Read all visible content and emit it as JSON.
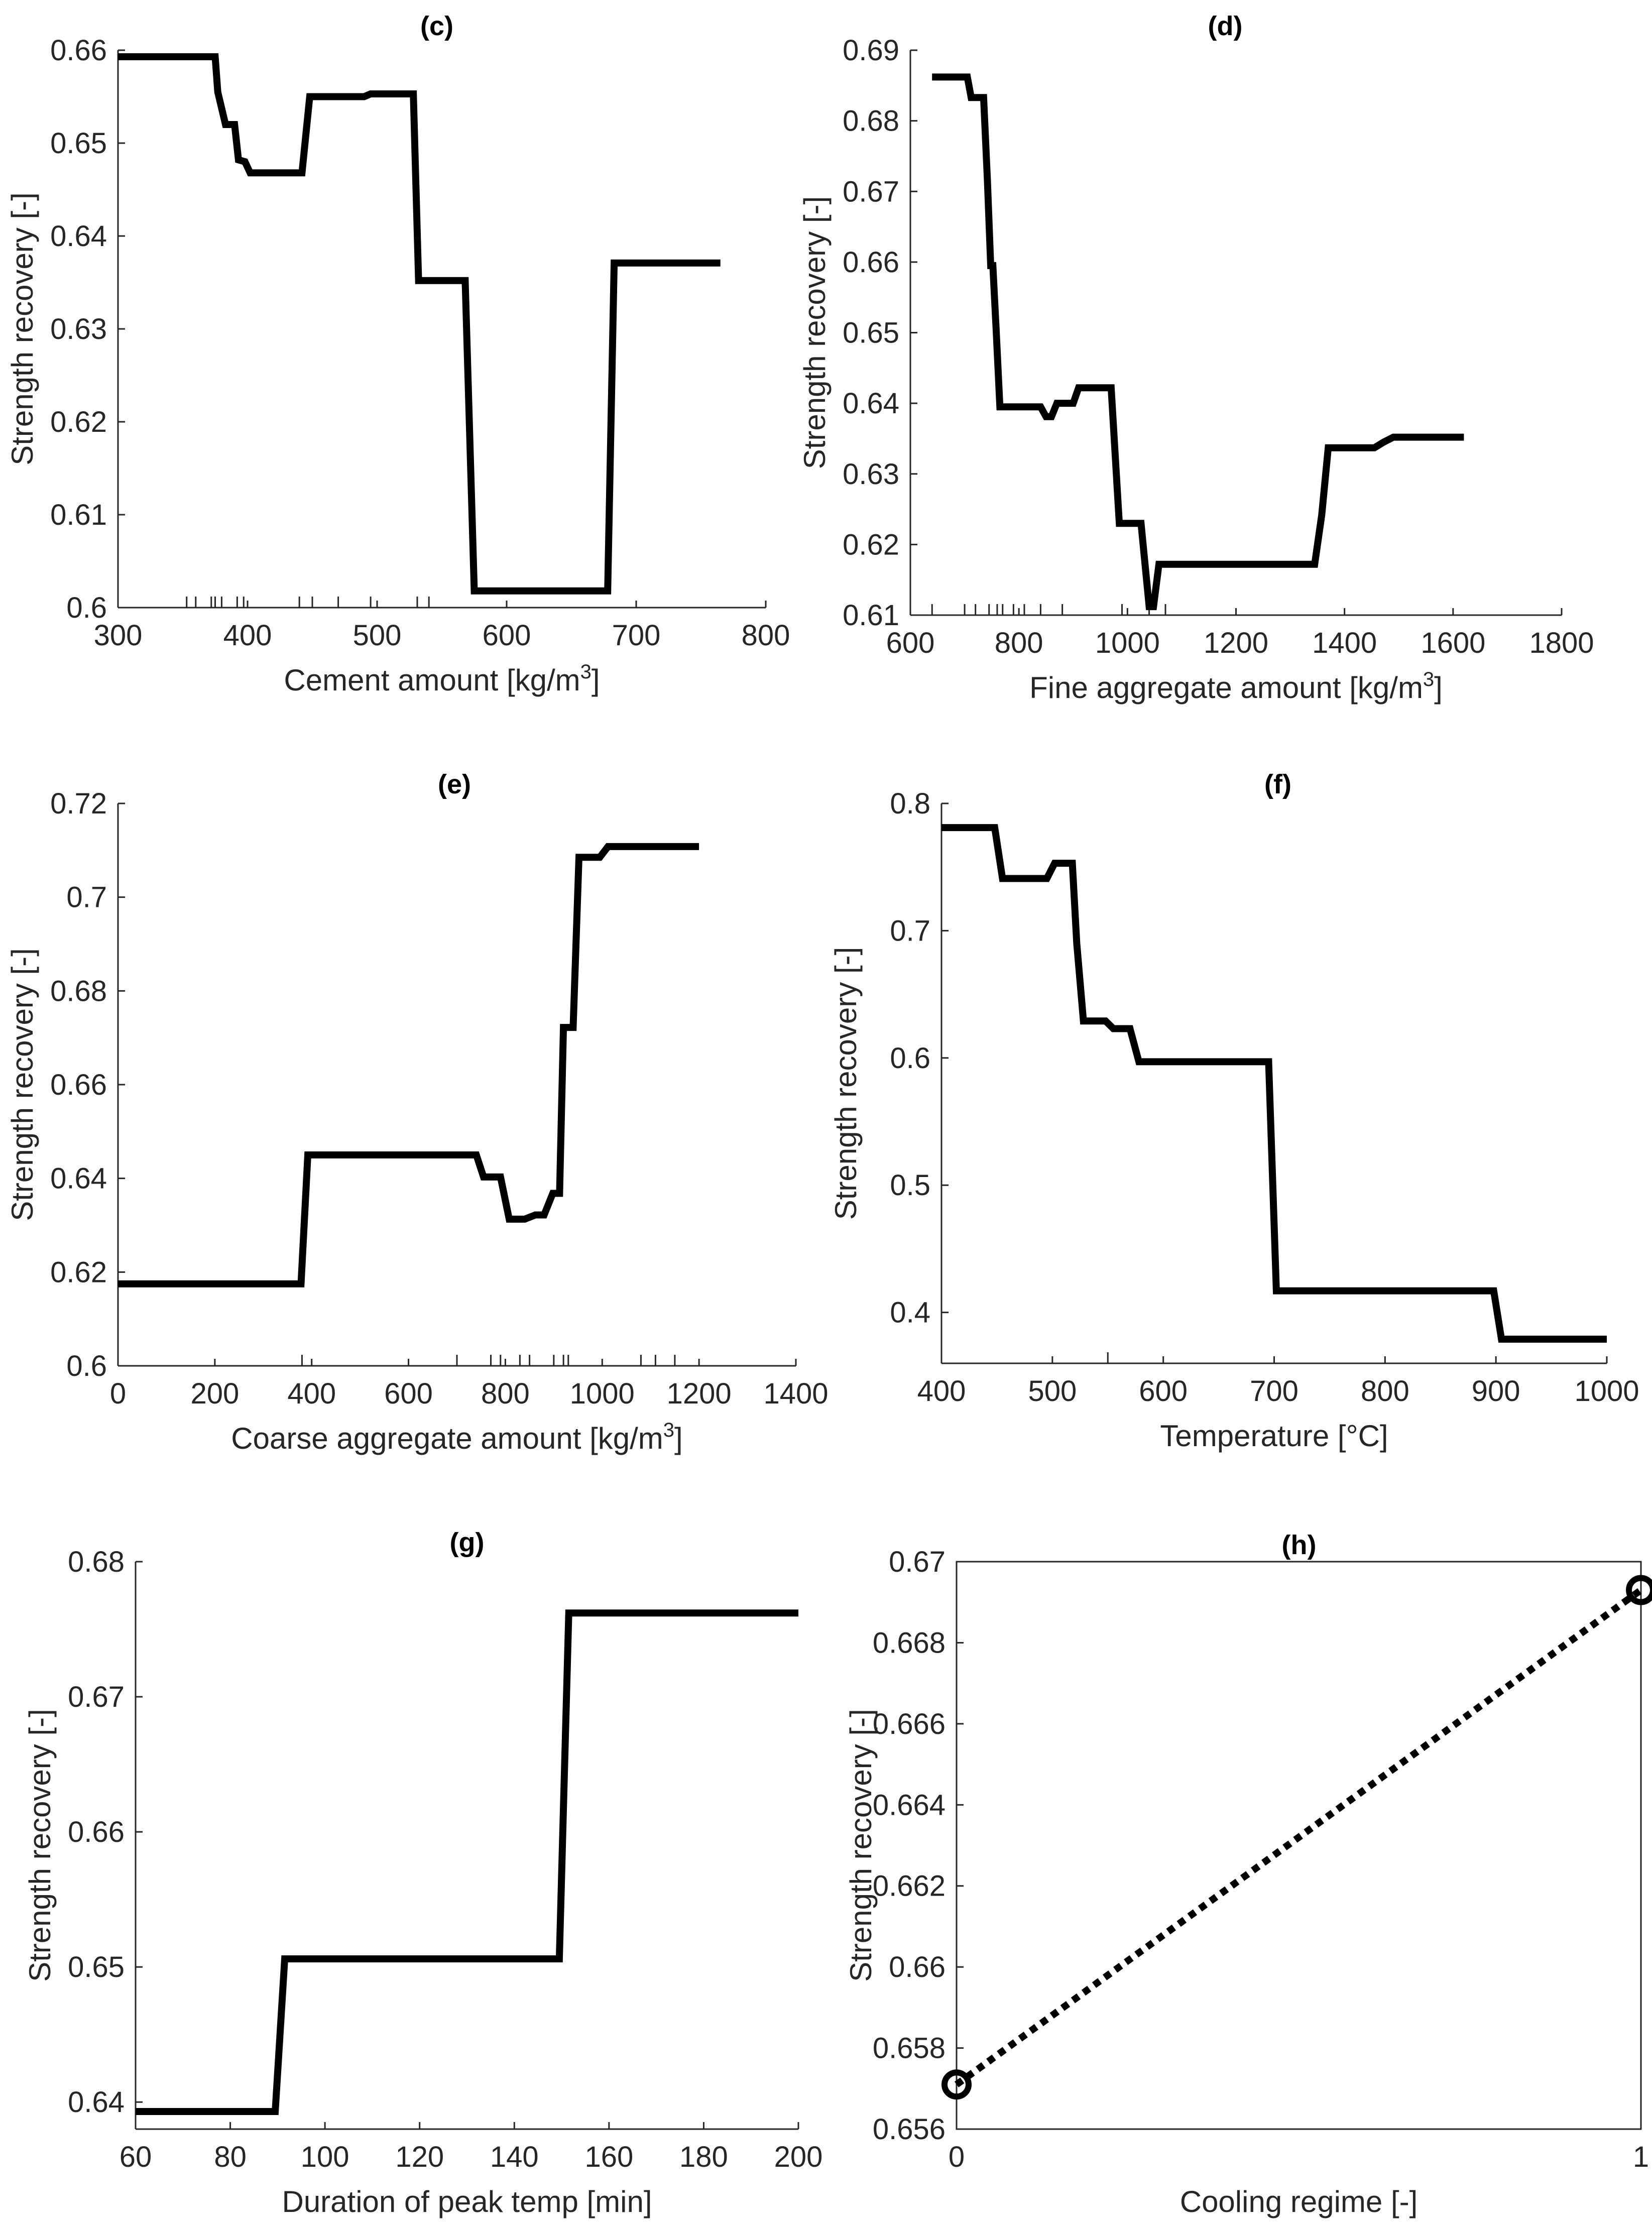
{
  "chart_data": [
    {
      "id": "c",
      "type": "line",
      "title": "(c)",
      "xlabel": "Cement amount [kg/m",
      "xlabel_sup": "3",
      "xlabel_end": "]",
      "ylabel": "Strength recovery [-]",
      "xlim": [
        300,
        800
      ],
      "ylim": [
        0.6,
        0.66
      ],
      "xticks": [
        300,
        400,
        500,
        600,
        700,
        800
      ],
      "xtick_labels": [
        "300",
        "400",
        "500",
        "600",
        "700",
        "800"
      ],
      "yticks": [
        0.6,
        0.61,
        0.62,
        0.63,
        0.64,
        0.65,
        0.66
      ],
      "ytick_labels": [
        "0.6",
        "0.61",
        "0.62",
        "0.63",
        "0.64",
        "0.65",
        "0.66"
      ],
      "rug": [
        353,
        360,
        372,
        375,
        380,
        392,
        397,
        440,
        450,
        470,
        495,
        531,
        540
      ],
      "x": [
        300,
        375,
        377,
        383,
        390,
        393,
        398,
        402,
        410,
        435,
        442,
        448,
        490,
        495,
        500,
        528,
        532,
        568,
        575,
        678,
        683,
        765
      ],
      "y": [
        0.6593,
        0.6593,
        0.6555,
        0.652,
        0.652,
        0.6482,
        0.648,
        0.6468,
        0.6468,
        0.6468,
        0.6468,
        0.655,
        0.655,
        0.6553,
        0.6553,
        0.6553,
        0.6352,
        0.6352,
        0.6018,
        0.6018,
        0.6371,
        0.6371
      ]
    },
    {
      "id": "d",
      "type": "line",
      "title": "(d)",
      "xlabel": "Fine aggregate amount [kg/m",
      "xlabel_sup": "3",
      "xlabel_end": "]",
      "ylabel": "Strength recovery [-]",
      "xlim": [
        600,
        1800
      ],
      "ylim": [
        0.61,
        0.69
      ],
      "xticks": [
        600,
        800,
        1000,
        1200,
        1400,
        1600,
        1800
      ],
      "xtick_labels": [
        "600",
        "800",
        "1000",
        "1200",
        "1400",
        "1600",
        "1800"
      ],
      "yticks": [
        0.61,
        0.62,
        0.63,
        0.64,
        0.65,
        0.66,
        0.67,
        0.68,
        0.69
      ],
      "ytick_labels": [
        "0.61",
        "0.62",
        "0.63",
        "0.64",
        "0.65",
        "0.66",
        "0.67",
        "0.68",
        "0.69"
      ],
      "rug": [
        640,
        700,
        720,
        745,
        760,
        770,
        790,
        810,
        840,
        880,
        990,
        1040,
        1070
      ],
      "x": [
        640,
        705,
        712,
        735,
        742,
        748,
        752,
        758,
        765,
        840,
        850,
        860,
        870,
        900,
        910,
        960,
        970,
        985,
        1025,
        1040,
        1048,
        1058,
        1345,
        1358,
        1370,
        1455,
        1472,
        1490,
        1620
      ],
      "y": [
        0.6862,
        0.6862,
        0.6833,
        0.6833,
        0.6715,
        0.6595,
        0.6595,
        0.6505,
        0.6395,
        0.6395,
        0.6381,
        0.6381,
        0.64,
        0.64,
        0.6422,
        0.6422,
        0.6422,
        0.623,
        0.623,
        0.6112,
        0.6112,
        0.6172,
        0.6172,
        0.6242,
        0.6337,
        0.6337,
        0.6345,
        0.6352,
        0.6352
      ]
    },
    {
      "id": "e",
      "type": "line",
      "title": "(e)",
      "xlabel": "Coarse aggregate amount [kg/m",
      "xlabel_sup": "3",
      "xlabel_end": "]",
      "ylabel": "Strength recovery [-]",
      "xlim": [
        0,
        1400
      ],
      "ylim": [
        0.6,
        0.72
      ],
      "xticks": [
        0,
        200,
        400,
        600,
        800,
        1000,
        1200,
        1400
      ],
      "xtick_labels": [
        "0",
        "200",
        "400",
        "600",
        "800",
        "1000",
        "1200",
        "1400"
      ],
      "yticks": [
        0.6,
        0.62,
        0.64,
        0.66,
        0.68,
        0.7,
        0.72
      ],
      "ytick_labels": [
        "0.6",
        "0.62",
        "0.64",
        "0.66",
        "0.68",
        "0.7",
        "0.72"
      ],
      "rug": [
        0,
        380,
        700,
        770,
        790,
        830,
        850,
        900,
        920,
        930,
        1080,
        1110,
        1150
      ],
      "x": [
        0,
        378,
        392,
        740,
        755,
        790,
        808,
        840,
        862,
        880,
        898,
        912,
        920,
        940,
        952,
        995,
        1012,
        1200
      ],
      "y": [
        0.6175,
        0.6175,
        0.645,
        0.645,
        0.6403,
        0.6403,
        0.6313,
        0.6313,
        0.6322,
        0.6322,
        0.6368,
        0.6368,
        0.6722,
        0.6722,
        0.7085,
        0.7085,
        0.7108,
        0.7108
      ]
    },
    {
      "id": "f",
      "type": "line",
      "title": "(f)",
      "xlabel": "Temperature [°C]",
      "xlabel_sup": "",
      "xlabel_end": "",
      "ylabel": "Strength recovery [-]",
      "xlim": [
        400,
        1000
      ],
      "ylim": [
        0.36,
        0.8
      ],
      "xticks": [
        400,
        500,
        600,
        700,
        800,
        900,
        1000
      ],
      "xtick_labels": [
        "400",
        "500",
        "600",
        "700",
        "800",
        "900",
        "1000"
      ],
      "yticks": [
        0.4,
        0.5,
        0.6,
        0.7,
        0.8
      ],
      "ytick_labels": [
        "0.4",
        "0.5",
        "0.6",
        "0.7",
        "0.8"
      ],
      "rug": [
        550
      ],
      "x": [
        400,
        448,
        455,
        495,
        502,
        518,
        522,
        528,
        548,
        555,
        570,
        578,
        695,
        702,
        898,
        905,
        1000
      ],
      "y": [
        0.781,
        0.781,
        0.741,
        0.741,
        0.753,
        0.753,
        0.69,
        0.629,
        0.629,
        0.623,
        0.623,
        0.597,
        0.597,
        0.417,
        0.417,
        0.379,
        0.379
      ]
    },
    {
      "id": "g",
      "type": "line",
      "title": "(g)",
      "xlabel": "Duration of peak temp [min]",
      "xlabel_sup": "",
      "xlabel_end": "",
      "ylabel": "Strength recovery [-]",
      "xlim": [
        60,
        200
      ],
      "ylim": [
        0.638,
        0.68
      ],
      "xticks": [
        60,
        80,
        100,
        120,
        140,
        160,
        180,
        200
      ],
      "xtick_labels": [
        "60",
        "80",
        "100",
        "120",
        "140",
        "160",
        "180",
        "200"
      ],
      "yticks": [
        0.64,
        0.65,
        0.66,
        0.67,
        0.68
      ],
      "ytick_labels": [
        "0.64",
        "0.65",
        "0.66",
        "0.67",
        "0.68"
      ],
      "rug": [],
      "x": [
        60,
        89.5,
        91.5,
        149.5,
        151.5,
        200
      ],
      "y": [
        0.6393,
        0.6393,
        0.6506,
        0.6506,
        0.6762,
        0.6762
      ]
    },
    {
      "id": "h",
      "type": "line",
      "style": "dotted",
      "title": "(h)",
      "xlabel": "Cooling regime [-]",
      "xlabel_sup": "",
      "xlabel_end": "",
      "ylabel": "Strength recovery [-]",
      "xlim": [
        0,
        1
      ],
      "ylim": [
        0.656,
        0.67
      ],
      "xticks": [
        0,
        1
      ],
      "xtick_labels": [
        "0",
        "1"
      ],
      "yticks": [
        0.656,
        0.658,
        0.66,
        0.662,
        0.664,
        0.666,
        0.668,
        0.67
      ],
      "ytick_labels": [
        "0.656",
        "0.658",
        "0.66",
        "0.662",
        "0.664",
        "0.666",
        "0.668",
        "0.67"
      ],
      "rug": [],
      "box": true,
      "markers": true,
      "x": [
        0,
        1
      ],
      "y": [
        0.6571,
        0.6693
      ]
    }
  ]
}
